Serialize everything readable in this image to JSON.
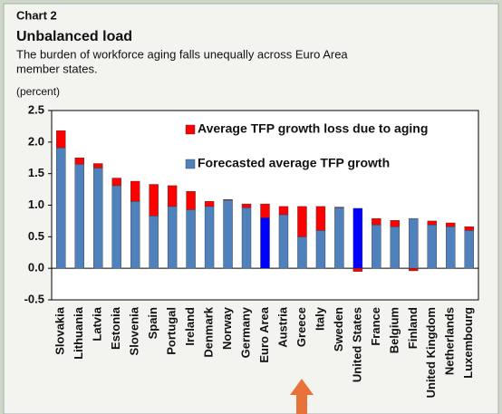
{
  "chart_data": {
    "type": "stacked_bar",
    "label": "Chart 2",
    "title": "Unbalanced load",
    "subtitle": [
      "The burden of workforce aging falls unequally across Euro Area",
      "member states."
    ],
    "y_label": "(percent)",
    "categories": [
      "Slovakia",
      "Lithuania",
      "Latvia",
      "Estonia",
      "Slovenia",
      "Spain",
      "Portugal",
      "Ireland",
      "Denmark",
      "Norway",
      "Germany",
      "Euro Area",
      "Austria",
      "Greece",
      "Italy",
      "Sweden",
      "United States",
      "France",
      "Belgium",
      "Finland",
      "United Kingdom",
      "Netherlands",
      "Luxembourg"
    ],
    "series": [
      {
        "name": "Forecasted average TFP growth",
        "color": "#4f81bd",
        "colors": [
          "#4f81bd",
          "#4f81bd",
          "#4f81bd",
          "#4f81bd",
          "#4f81bd",
          "#4f81bd",
          "#4f81bd",
          "#4f81bd",
          "#4f81bd",
          "#4f81bd",
          "#4f81bd",
          "#0000ff",
          "#4f81bd",
          "#4f81bd",
          "#4f81bd",
          "#4f81bd",
          "#0000ff",
          "#4f81bd",
          "#4f81bd",
          "#4f81bd",
          "#4f81bd",
          "#4f81bd",
          "#4f81bd"
        ],
        "values": [
          1.91,
          1.65,
          1.59,
          1.31,
          1.06,
          0.83,
          0.98,
          0.93,
          0.98,
          1.08,
          0.96,
          0.8,
          0.85,
          0.5,
          0.6,
          0.96,
          0.95,
          0.69,
          0.66,
          0.79,
          0.69,
          0.66,
          0.6
        ]
      },
      {
        "name": "Average TFP growth loss due to aging",
        "color": "#ff0000",
        "values": [
          0.27,
          0.1,
          0.07,
          0.12,
          0.32,
          0.5,
          0.33,
          0.29,
          0.08,
          0.01,
          0.06,
          0.22,
          0.13,
          0.48,
          0.38,
          0.01,
          -0.05,
          0.1,
          0.1,
          -0.04,
          0.06,
          0.06,
          0.06
        ]
      }
    ],
    "legend_order": [
      1,
      0
    ],
    "ylim": [
      -0.5,
      2.5
    ],
    "yticks": [
      {
        "value": -0.5,
        "label": "-0.5"
      },
      {
        "value": 0,
        "label": "0.0"
      },
      0.5,
      {
        "value": 1,
        "label": "1.0"
      },
      1.5,
      {
        "value": 2,
        "label": "2.0"
      },
      2.5
    ]
  }
}
